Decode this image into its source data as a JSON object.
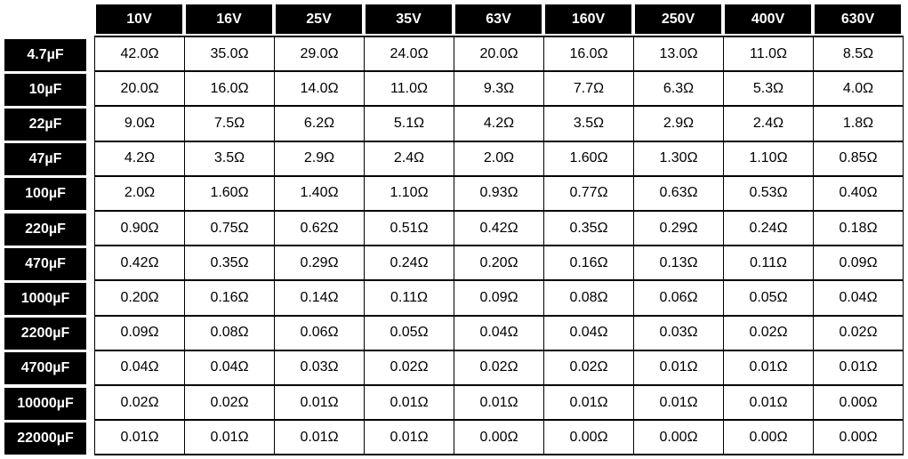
{
  "table": {
    "columns": [
      "10V",
      "16V",
      "25V",
      "35V",
      "63V",
      "160V",
      "250V",
      "400V",
      "630V"
    ],
    "rows": [
      {
        "label": "4.7µF",
        "cells": [
          "42.0Ω",
          "35.0Ω",
          "29.0Ω",
          "24.0Ω",
          "20.0Ω",
          "16.0Ω",
          "13.0Ω",
          "11.0Ω",
          "8.5Ω"
        ]
      },
      {
        "label": "10µF",
        "cells": [
          "20.0Ω",
          "16.0Ω",
          "14.0Ω",
          "11.0Ω",
          "9.3Ω",
          "7.7Ω",
          "6.3Ω",
          "5.3Ω",
          "4.0Ω"
        ]
      },
      {
        "label": "22µF",
        "cells": [
          "9.0Ω",
          "7.5Ω",
          "6.2Ω",
          "5.1Ω",
          "4.2Ω",
          "3.5Ω",
          "2.9Ω",
          "2.4Ω",
          "1.8Ω"
        ]
      },
      {
        "label": "47µF",
        "cells": [
          "4.2Ω",
          "3.5Ω",
          "2.9Ω",
          "2.4Ω",
          "2.0Ω",
          "1.60Ω",
          "1.30Ω",
          "1.10Ω",
          "0.85Ω"
        ]
      },
      {
        "label": "100µF",
        "cells": [
          "2.0Ω",
          "1.60Ω",
          "1.40Ω",
          "1.10Ω",
          "0.93Ω",
          "0.77Ω",
          "0.63Ω",
          "0.53Ω",
          "0.40Ω"
        ]
      },
      {
        "label": "220µF",
        "cells": [
          "0.90Ω",
          "0.75Ω",
          "0.62Ω",
          "0.51Ω",
          "0.42Ω",
          "0.35Ω",
          "0.29Ω",
          "0.24Ω",
          "0.18Ω"
        ]
      },
      {
        "label": "470µF",
        "cells": [
          "0.42Ω",
          "0.35Ω",
          "0.29Ω",
          "0.24Ω",
          "0.20Ω",
          "0.16Ω",
          "0.13Ω",
          "0.11Ω",
          "0.09Ω"
        ]
      },
      {
        "label": "1000µF",
        "cells": [
          "0.20Ω",
          "0.16Ω",
          "0.14Ω",
          "0.11Ω",
          "0.09Ω",
          "0.08Ω",
          "0.06Ω",
          "0.05Ω",
          "0.04Ω"
        ]
      },
      {
        "label": "2200µF",
        "cells": [
          "0.09Ω",
          "0.08Ω",
          "0.06Ω",
          "0.05Ω",
          "0.04Ω",
          "0.04Ω",
          "0.03Ω",
          "0.02Ω",
          "0.02Ω"
        ]
      },
      {
        "label": "4700µF",
        "cells": [
          "0.04Ω",
          "0.04Ω",
          "0.03Ω",
          "0.02Ω",
          "0.02Ω",
          "0.02Ω",
          "0.01Ω",
          "0.01Ω",
          "0.01Ω"
        ]
      },
      {
        "label": "10000µF",
        "cells": [
          "0.02Ω",
          "0.02Ω",
          "0.01Ω",
          "0.01Ω",
          "0.01Ω",
          "0.01Ω",
          "0.01Ω",
          "0.01Ω",
          "0.00Ω"
        ]
      },
      {
        "label": "22000µF",
        "cells": [
          "0.01Ω",
          "0.01Ω",
          "0.01Ω",
          "0.01Ω",
          "0.00Ω",
          "0.00Ω",
          "0.00Ω",
          "0.00Ω",
          "0.00Ω"
        ]
      }
    ]
  }
}
